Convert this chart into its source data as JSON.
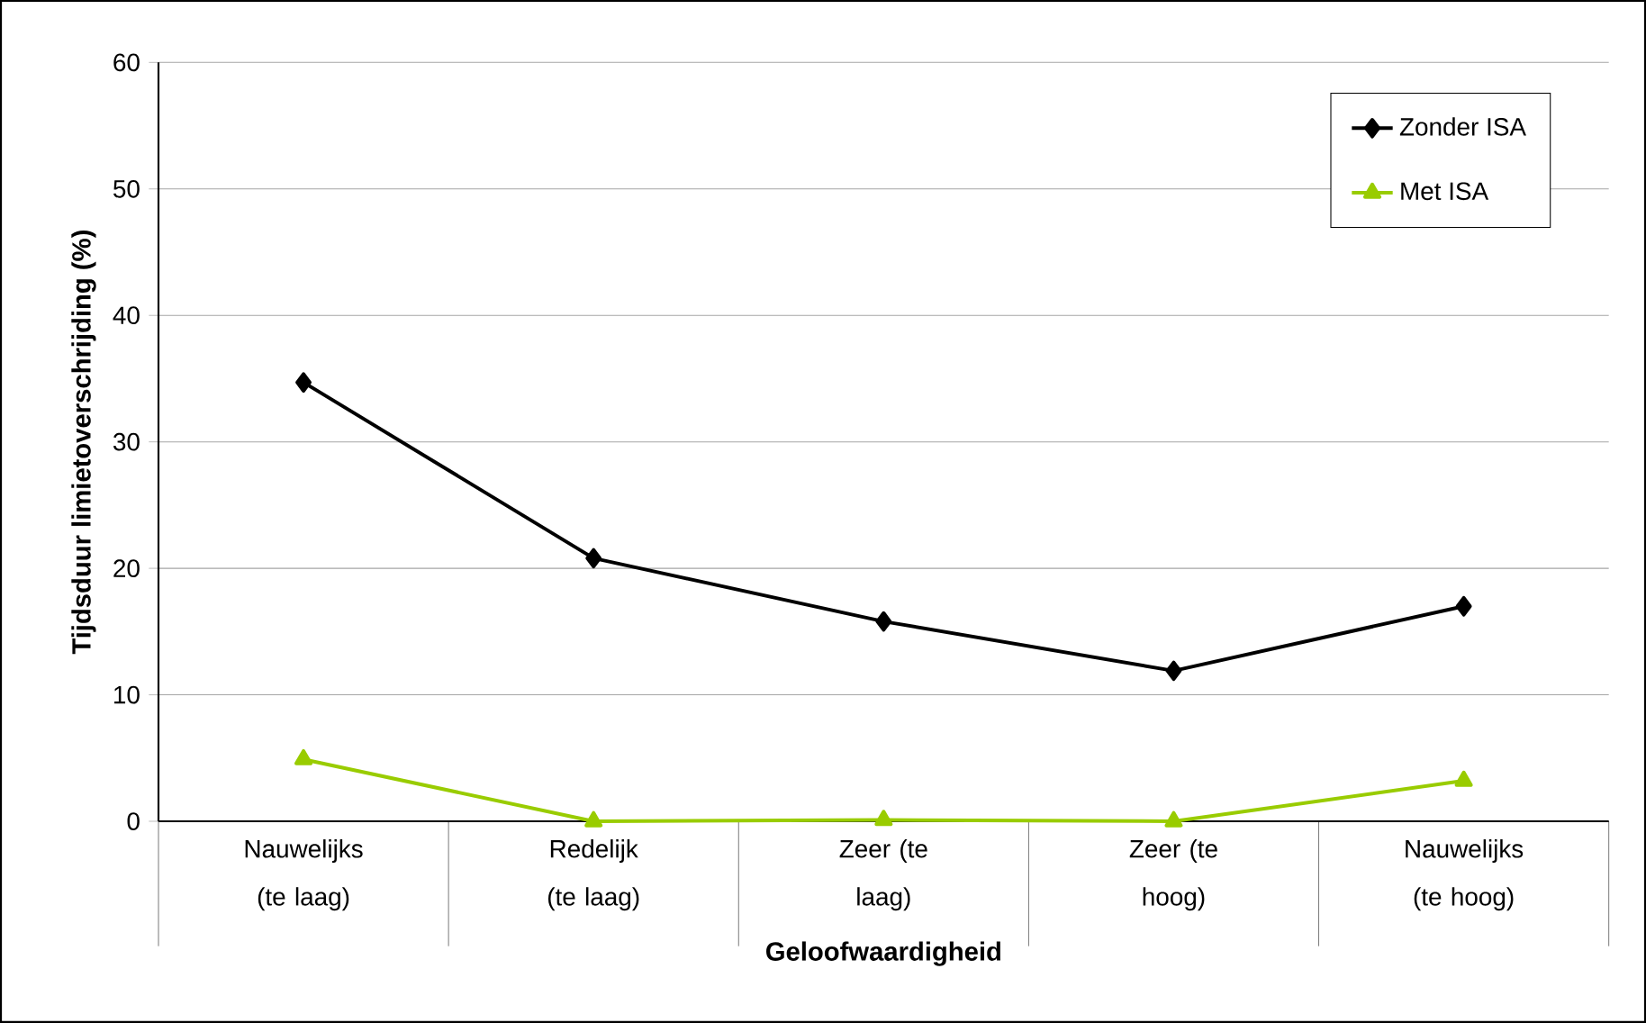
{
  "chart_data": {
    "type": "line",
    "xlabel": "Geloofwaardigheid",
    "ylabel": "Tijdsduur limietoverschrijding (%)",
    "categories": [
      "Nauwelijks (te laag)",
      "Redelijk (te laag)",
      "Zeer (te laag)",
      "Zeer (te hoog)",
      "Nauwelijks (te hoog)"
    ],
    "series": [
      {
        "name": "Zonder ISA",
        "color": "#000000",
        "marker": "diamond",
        "values": [
          34.7,
          20.8,
          15.8,
          11.9,
          17.0
        ]
      },
      {
        "name": "Met ISA",
        "color": "#99cc00",
        "marker": "triangle",
        "values": [
          4.9,
          0,
          0.1,
          0,
          3.2
        ]
      }
    ],
    "ylim": [
      0,
      60
    ],
    "yticks": [
      0,
      10,
      20,
      30,
      40,
      50,
      60
    ],
    "grid": "y",
    "legend": "top right"
  }
}
